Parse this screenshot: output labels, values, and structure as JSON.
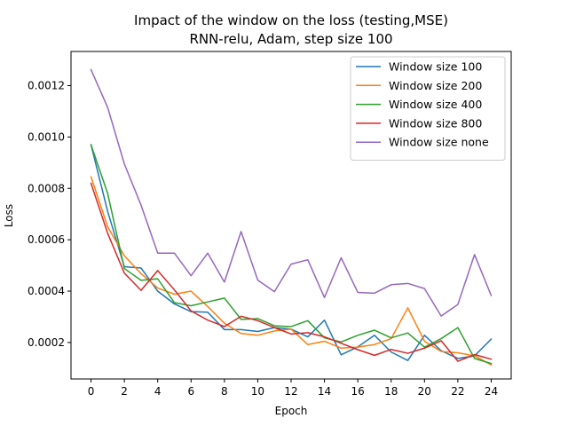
{
  "chart_data": {
    "type": "line",
    "title": "Impact of the window on the loss (testing,MSE)",
    "subtitle": "RNN-relu, Adam, step size 100",
    "xlabel": "Epoch",
    "ylabel": "Loss",
    "xlim": [
      -1.2,
      25.2
    ],
    "ylim": [
      5.8e-05,
      0.001333
    ],
    "x_ticks": [
      0,
      2,
      4,
      6,
      8,
      10,
      12,
      14,
      16,
      18,
      20,
      22,
      24
    ],
    "y_ticks": [
      0.0002,
      0.0004,
      0.0006,
      0.0008,
      0.001,
      0.0012
    ],
    "y_tick_labels": [
      "0.0002",
      "0.0004",
      "0.0006",
      "0.0008",
      "0.0010",
      "0.0012"
    ],
    "legend_position": "upper right",
    "grid": false,
    "x": [
      0,
      1,
      2,
      3,
      4,
      5,
      6,
      7,
      8,
      9,
      10,
      11,
      12,
      13,
      14,
      15,
      16,
      17,
      18,
      19,
      20,
      21,
      22,
      23,
      24
    ],
    "series": [
      {
        "name": "Window size 100",
        "color": "#1f77b4",
        "values": [
          0.00097,
          0.00071,
          0.000495,
          0.00049,
          0.0004,
          0.00035,
          0.00032,
          0.000318,
          0.00025,
          0.00025,
          0.000243,
          0.000258,
          0.000252,
          0.000222,
          0.000287,
          0.000152,
          0.000183,
          0.000228,
          0.000163,
          0.00013,
          0.000228,
          0.000168,
          0.000138,
          0.000148,
          0.000213
        ]
      },
      {
        "name": "Window size 200",
        "color": "#ff7f0e",
        "values": [
          0.000845,
          0.00065,
          0.000538,
          0.000468,
          0.000412,
          0.000388,
          0.0004,
          0.00034,
          0.000275,
          0.000235,
          0.000228,
          0.000245,
          0.000252,
          0.000192,
          0.000205,
          0.000178,
          0.000182,
          0.000192,
          0.000215,
          0.000335,
          0.000205,
          0.000165,
          0.00016,
          0.000148,
          0.000113
        ]
      },
      {
        "name": "Window size 400",
        "color": "#2ca02c",
        "values": [
          0.00097,
          0.00078,
          0.000488,
          0.000442,
          0.000448,
          0.000355,
          0.000343,
          0.000358,
          0.000373,
          0.00029,
          0.000293,
          0.000265,
          0.000262,
          0.000285,
          0.000218,
          0.000202,
          0.000228,
          0.000248,
          0.000218,
          0.000237,
          0.000182,
          0.000215,
          0.000258,
          0.000138,
          0.000118
        ]
      },
      {
        "name": "Window size 800",
        "color": "#d62728",
        "values": [
          0.00082,
          0.000625,
          0.00047,
          0.000403,
          0.00048,
          0.000405,
          0.000323,
          0.000287,
          0.000262,
          0.000302,
          0.000285,
          0.000258,
          0.000233,
          0.000238,
          0.000222,
          0.000197,
          0.000172,
          0.00015,
          0.000173,
          0.000158,
          0.000178,
          0.000207,
          0.000127,
          0.000153,
          0.000135
        ]
      },
      {
        "name": "Window size none",
        "color": "#9467bd",
        "values": [
          0.001262,
          0.001115,
          0.000895,
          0.000735,
          0.000548,
          0.000548,
          0.00046,
          0.000548,
          0.000435,
          0.000632,
          0.000443,
          0.000398,
          0.000505,
          0.000522,
          0.000375,
          0.00053,
          0.000395,
          0.000392,
          0.000425,
          0.00043,
          0.00041,
          0.000303,
          0.000348,
          0.000542,
          0.000383
        ]
      }
    ]
  }
}
